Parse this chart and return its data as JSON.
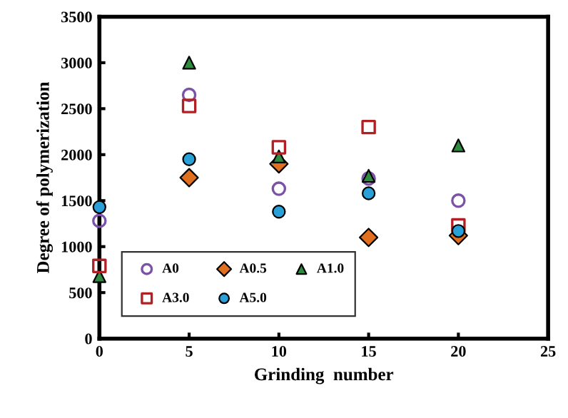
{
  "chart_data": {
    "type": "scatter",
    "xlabel": "Grinding  number",
    "ylabel": "Degree of polymerization",
    "x": [
      0,
      5,
      10,
      15,
      20
    ],
    "series": [
      {
        "name": "A0",
        "color": "#7b52a8",
        "marker": "circle",
        "values": [
          1280,
          2650,
          1630,
          1740,
          1500
        ]
      },
      {
        "name": "A0.5",
        "color": "#e07020",
        "marker": "diamond",
        "values": [
          null,
          1750,
          1900,
          1100,
          1120
        ]
      },
      {
        "name": "A1.0",
        "color": "#2e8b40",
        "marker": "triangle",
        "values": [
          680,
          3000,
          1980,
          1770,
          2100
        ]
      },
      {
        "name": "A3.0",
        "color": "#b02024",
        "marker": "square",
        "values": [
          790,
          2530,
          2080,
          2300,
          1230
        ]
      },
      {
        "name": "A5.0",
        "color": "#2aa0d8",
        "marker": "circle",
        "values": [
          1430,
          1950,
          1380,
          1580,
          1170
        ]
      }
    ],
    "xlim": [
      0,
      25
    ],
    "xticks": [
      0,
      5,
      10,
      15,
      20,
      25
    ],
    "ylim": [
      0,
      3500
    ],
    "yticks": [
      0,
      500,
      1000,
      1500,
      2000,
      2500,
      3000,
      3500
    ],
    "grid": false,
    "legend": "bottom left"
  }
}
